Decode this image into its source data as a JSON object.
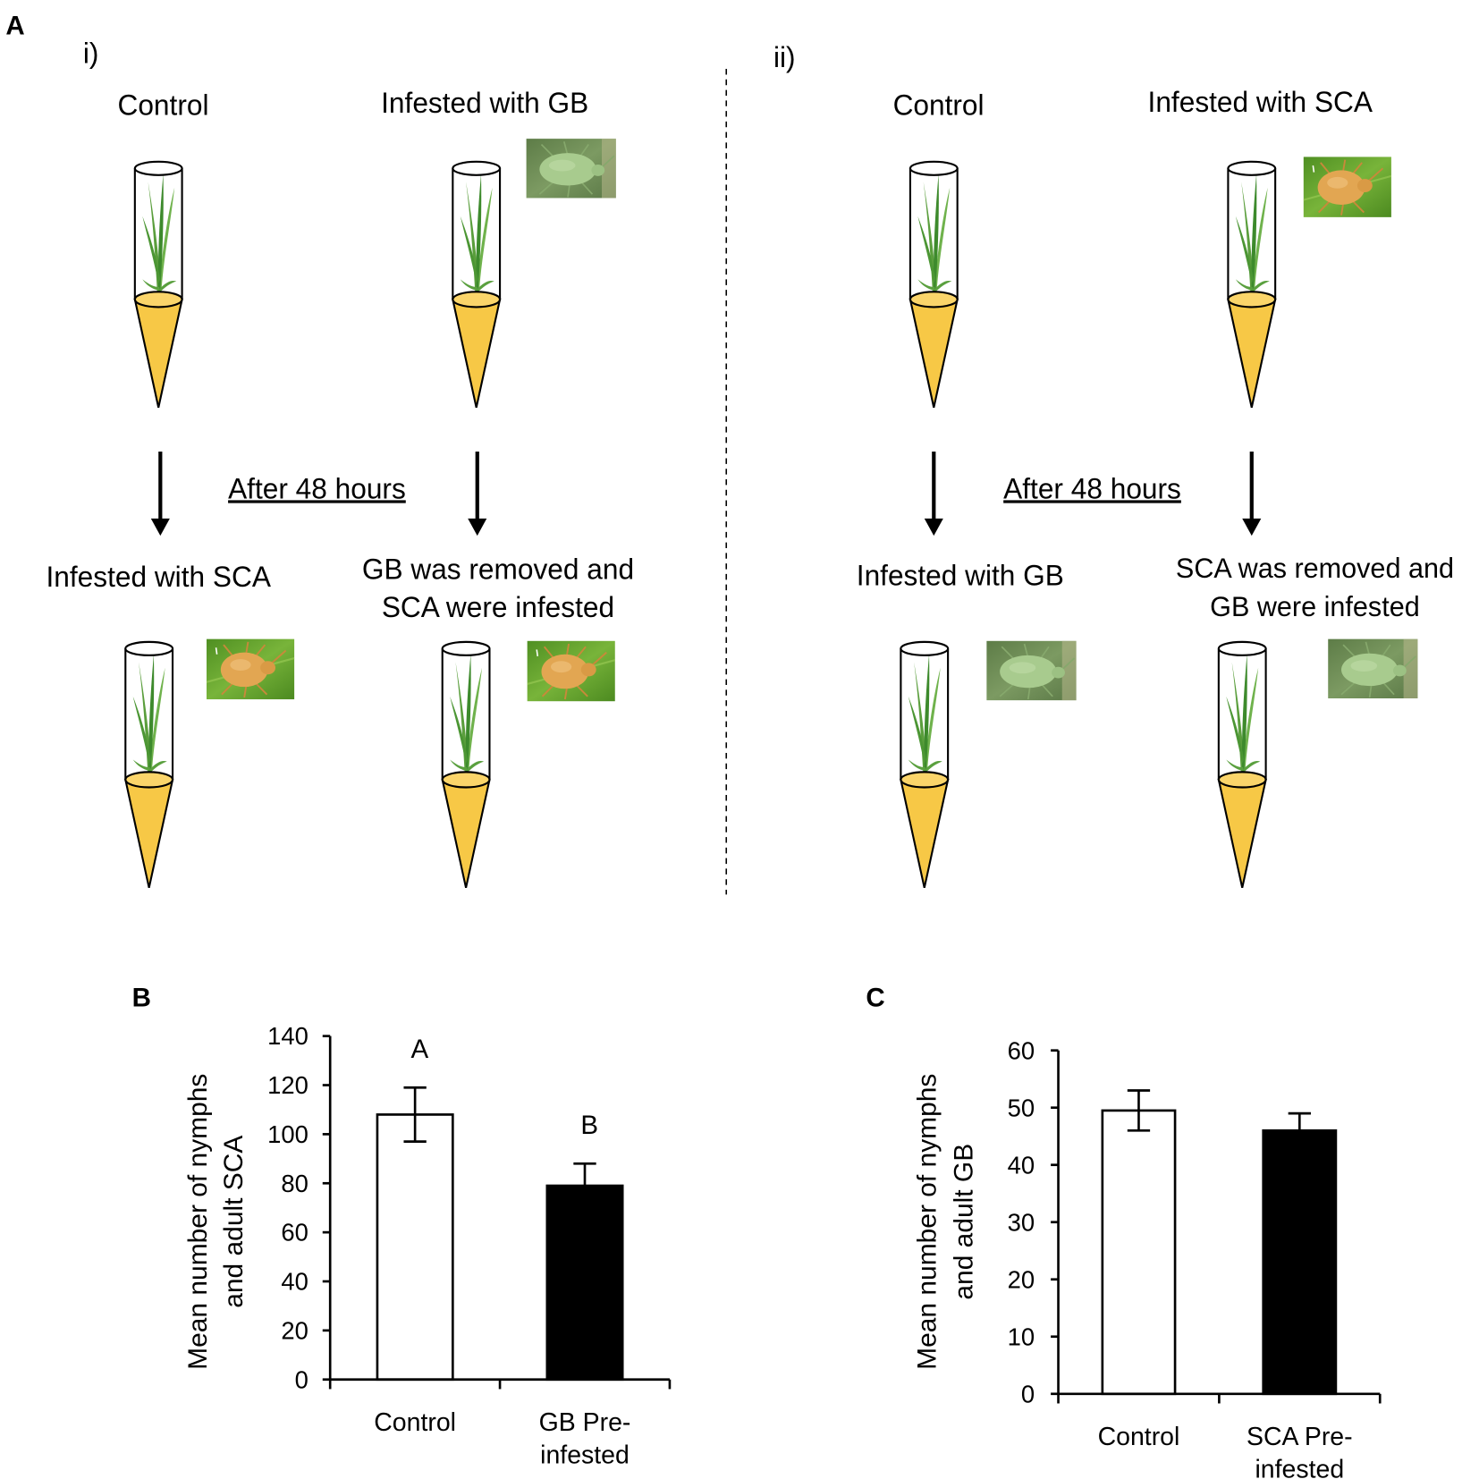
{
  "panel_a": {
    "label": "A",
    "sections": [
      {
        "label": "i)",
        "top": [
          {
            "label": "Control"
          },
          {
            "label": "Infested with GB",
            "aphid": "greenbug-photo"
          }
        ],
        "transition": "After 48 hours",
        "bottom": [
          {
            "lines": [
              "Infested with SCA"
            ],
            "aphid": "sugarcane-aphid-photo"
          },
          {
            "lines": [
              "GB was removed and",
              "SCA were infested"
            ],
            "aphid": "sugarcane-aphid-photo"
          }
        ]
      },
      {
        "label": "ii)",
        "top": [
          {
            "label": "Control"
          },
          {
            "label": "Infested with SCA",
            "aphid": "sugarcane-aphid-photo"
          }
        ],
        "transition": "After 48 hours",
        "bottom": [
          {
            "lines": [
              "Infested with GB"
            ],
            "aphid": "greenbug-photo"
          },
          {
            "lines": [
              "SCA was removed and",
              "GB were infested"
            ],
            "aphid": "greenbug-photo"
          }
        ]
      }
    ]
  },
  "colors": {
    "cone": "#F7C846",
    "cone_top": "#FBD56A",
    "outline": "#000000"
  },
  "chart_data": [
    {
      "panel_label": "B",
      "type": "bar",
      "categories": [
        [
          "Control"
        ],
        [
          "GB Pre-",
          "infested"
        ]
      ],
      "values": [
        108,
        79
      ],
      "errors": [
        11,
        9
      ],
      "bar_fills": [
        "#ffffff",
        "#000000"
      ],
      "significance_letters": [
        "A",
        "B"
      ],
      "ylabel": [
        "Mean number of nymphs",
        "and adult SCA"
      ],
      "ylim": [
        0,
        140
      ],
      "yticks": [
        0,
        20,
        40,
        60,
        80,
        100,
        120,
        140
      ]
    },
    {
      "panel_label": "C",
      "type": "bar",
      "categories": [
        [
          "Control"
        ],
        [
          "SCA Pre-",
          "infested"
        ]
      ],
      "values": [
        49.5,
        46
      ],
      "errors": [
        3.5,
        3
      ],
      "bar_fills": [
        "#ffffff",
        "#000000"
      ],
      "significance_letters": [],
      "ylabel": [
        "Mean number of nymphs",
        "and adult GB"
      ],
      "ylim": [
        0,
        60
      ],
      "yticks": [
        0,
        10,
        20,
        30,
        40,
        50,
        60
      ]
    }
  ]
}
